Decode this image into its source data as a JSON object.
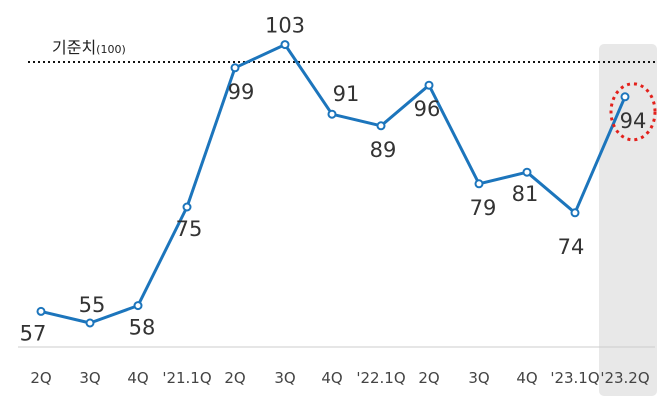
{
  "chart_data": {
    "type": "line",
    "categories": [
      "2Q",
      "3Q",
      "4Q",
      "'21.1Q",
      "2Q",
      "3Q",
      "4Q",
      "'22.1Q",
      "2Q",
      "3Q",
      "4Q",
      "'23.1Q",
      "'23.2Q"
    ],
    "values": [
      57,
      55,
      58,
      75,
      99,
      103,
      91,
      89,
      96,
      79,
      81,
      74,
      94
    ],
    "labels": [
      "57",
      "55",
      "58",
      "75",
      "99",
      "103",
      "91",
      "89",
      "96",
      "79",
      "81",
      "74",
      "94"
    ],
    "reference": {
      "label": "기준치",
      "label_suffix": "(100)",
      "value": 100
    },
    "highlight_index": 12,
    "colors": {
      "line": "#1c75bc",
      "highlight_band": "#e8e8e8",
      "circle": "#e3211c",
      "reference": "#111111"
    },
    "grid": false,
    "legend": "none"
  }
}
